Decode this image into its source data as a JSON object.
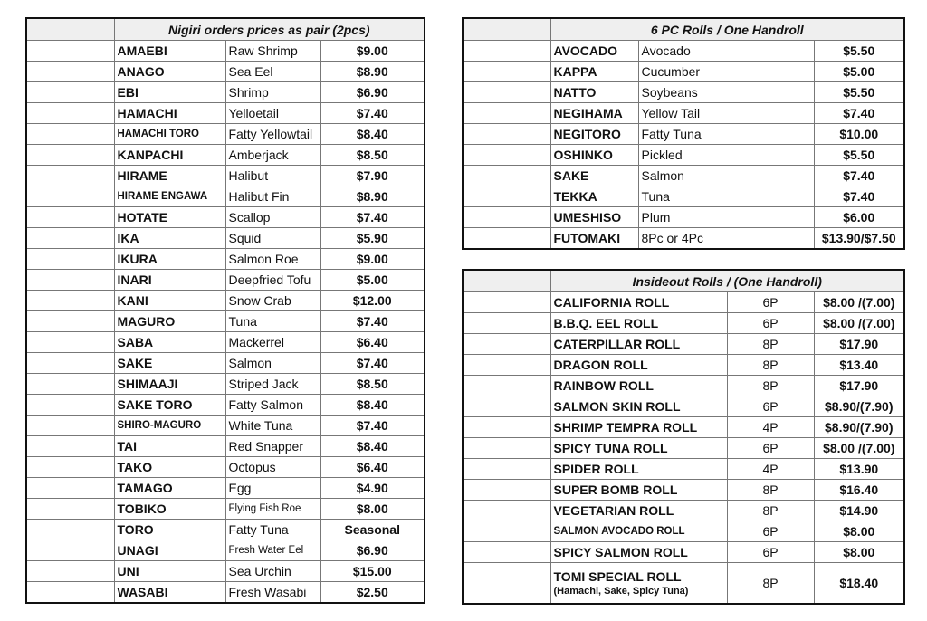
{
  "nigiri": {
    "title": "Nigiri orders prices as pair (2pcs)",
    "rows": [
      [
        "AMAEBI",
        "Raw Shrimp",
        "$9.00"
      ],
      [
        "ANAGO",
        "Sea Eel",
        "$8.90"
      ],
      [
        "EBI",
        "Shrimp",
        "$6.90"
      ],
      [
        "HAMACHI",
        "Yelloetail",
        "$7.40"
      ],
      [
        "HAMACHI TORO",
        "Fatty Yellowtail",
        "$8.40"
      ],
      [
        "KANPACHI",
        "Amberjack",
        "$8.50"
      ],
      [
        "HIRAME",
        "Halibut",
        "$7.90"
      ],
      [
        "HIRAME ENGAWA",
        "Halibut Fin",
        "$8.90"
      ],
      [
        "HOTATE",
        "Scallop",
        "$7.40"
      ],
      [
        "IKA",
        "Squid",
        "$5.90"
      ],
      [
        "IKURA",
        "Salmon Roe",
        "$9.00"
      ],
      [
        "INARI",
        "Deepfried Tofu",
        "$5.00"
      ],
      [
        "KANI",
        "Snow Crab",
        "$12.00"
      ],
      [
        "MAGURO",
        "Tuna",
        "$7.40"
      ],
      [
        "SABA",
        "Mackerrel",
        "$6.40"
      ],
      [
        "SAKE",
        "Salmon",
        "$7.40"
      ],
      [
        "SHIMAAJI",
        "Striped Jack",
        "$8.50"
      ],
      [
        "SAKE TORO",
        "Fatty Salmon",
        "$8.40"
      ],
      [
        "SHIRO-MAGURO",
        "White Tuna",
        "$7.40"
      ],
      [
        "TAI",
        "Red Snapper",
        "$8.40"
      ],
      [
        "TAKO",
        "Octopus",
        "$6.40"
      ],
      [
        "TAMAGO",
        "Egg",
        "$4.90"
      ],
      [
        "TOBIKO",
        "Flying Fish Roe",
        "$8.00"
      ],
      [
        "TORO",
        "Fatty Tuna",
        "Seasonal"
      ],
      [
        "UNAGI",
        "Fresh Water Eel",
        "$6.90"
      ],
      [
        "UNI",
        "Sea Urchin",
        "$15.00"
      ],
      [
        "WASABI",
        "Fresh Wasabi",
        "$2.50"
      ]
    ]
  },
  "rolls": {
    "title": "6 PC Rolls / One Handroll",
    "rows": [
      [
        "AVOCADO",
        "Avocado",
        "$5.50"
      ],
      [
        "KAPPA",
        "Cucumber",
        "$5.00"
      ],
      [
        "NATTO",
        "Soybeans",
        "$5.50"
      ],
      [
        "NEGIHAMA",
        "Yellow Tail",
        "$7.40"
      ],
      [
        "NEGITORO",
        "Fatty Tuna",
        "$10.00"
      ],
      [
        "OSHINKO",
        "Pickled",
        "$5.50"
      ],
      [
        "SAKE",
        "Salmon",
        "$7.40"
      ],
      [
        "TEKKA",
        "Tuna",
        "$7.40"
      ],
      [
        "UMESHISO",
        "Plum",
        "$6.00"
      ],
      [
        "FUTOMAKI",
        "8Pc or 4Pc",
        "$13.90/$7.50"
      ]
    ]
  },
  "insideout": {
    "title": "Insideout Rolls / (One Handroll)",
    "rows": [
      [
        "CALIFORNIA ROLL",
        "6P",
        "$8.00 /(7.00)"
      ],
      [
        "B.B.Q. EEL ROLL",
        "6P",
        "$8.00 /(7.00)"
      ],
      [
        "CATERPILLAR ROLL",
        "8P",
        "$17.90"
      ],
      [
        "DRAGON ROLL",
        "8P",
        "$13.40"
      ],
      [
        "RAINBOW ROLL",
        "8P",
        "$17.90"
      ],
      [
        "SALMON SKIN ROLL",
        "6P",
        "$8.90/(7.90)"
      ],
      [
        "SHRIMP TEMPRA ROLL",
        "4P",
        "$8.90/(7.90)"
      ],
      [
        "SPICY TUNA ROLL",
        "6P",
        "$8.00 /(7.00)"
      ],
      [
        "SPIDER ROLL",
        "4P",
        "$13.90"
      ],
      [
        "SUPER BOMB ROLL",
        "8P",
        "$16.40"
      ],
      [
        "VEGETARIAN ROLL",
        "8P",
        "$14.90"
      ],
      [
        "SALMON AVOCADO ROLL",
        "6P",
        "$8.00"
      ],
      [
        "SPICY SALMON ROLL",
        "6P",
        "$8.00"
      ],
      [
        "TOMI SPECIAL ROLL",
        "8P",
        "$18.40"
      ]
    ],
    "last_note": "(Hamachi, Sake, Spicy Tuna)"
  }
}
